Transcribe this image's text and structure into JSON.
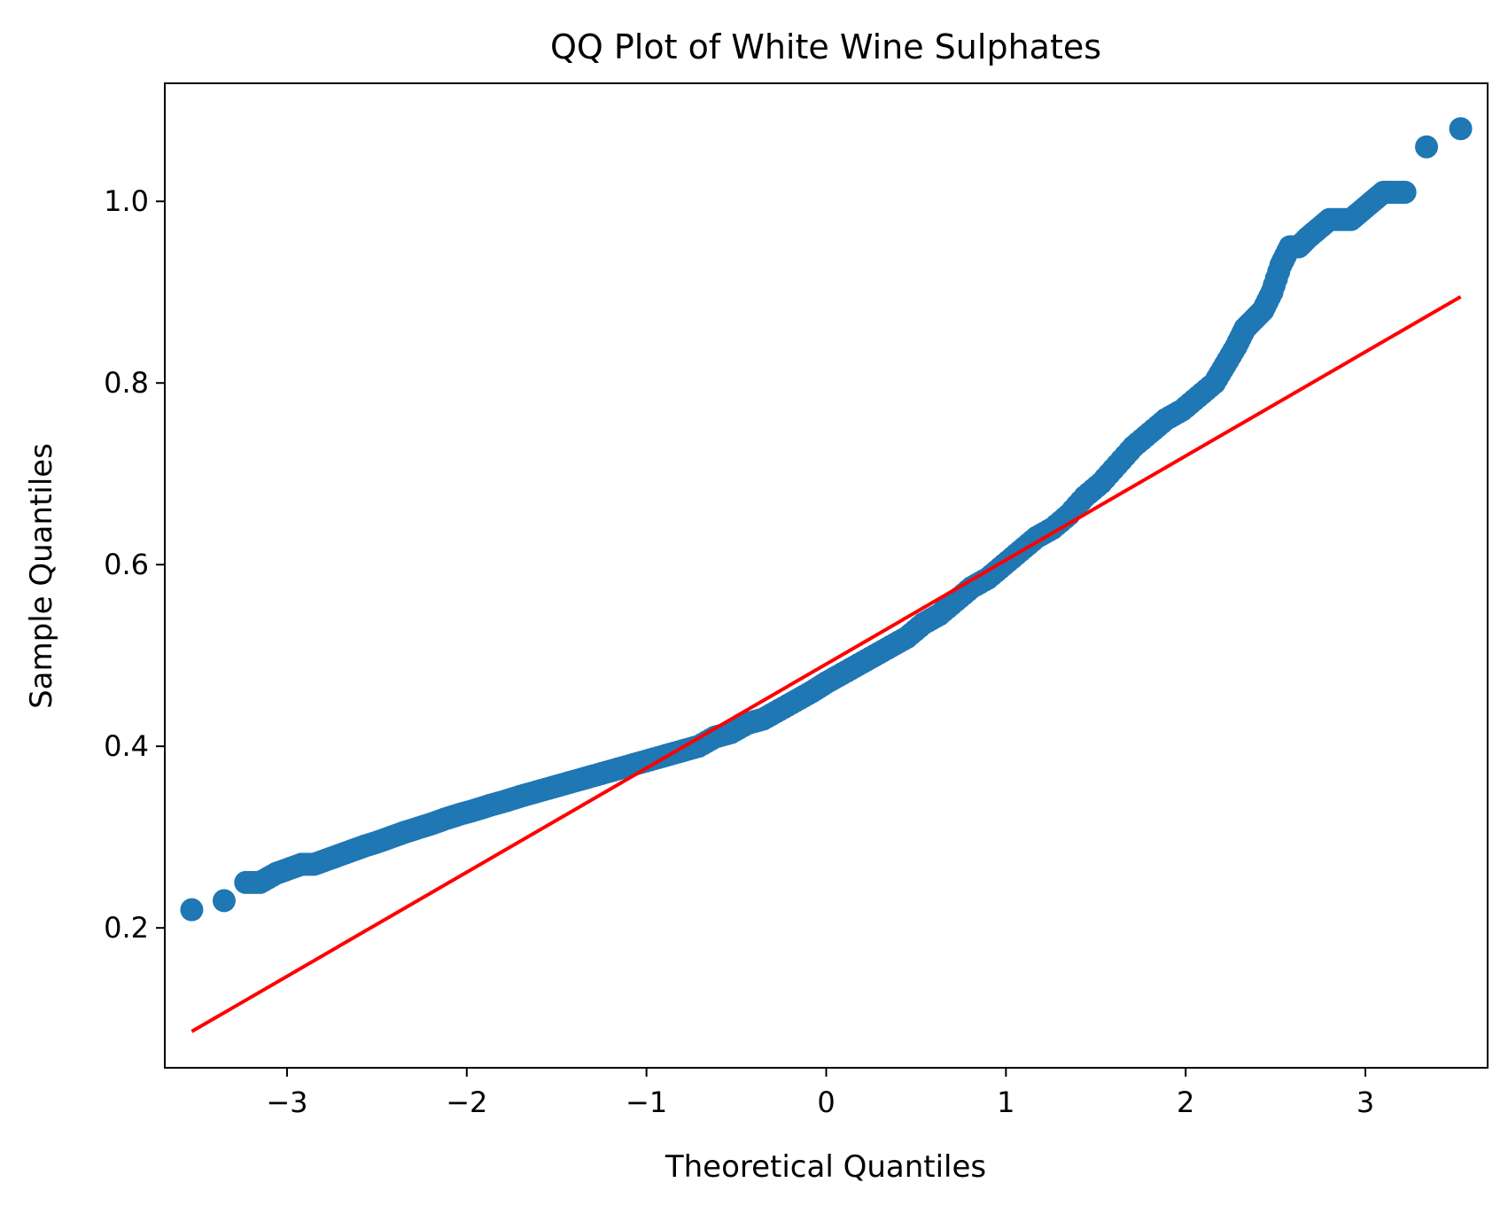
{
  "chart_data": {
    "type": "scatter",
    "title": "QQ Plot of White Wine Sulphates",
    "xlabel": "Theoretical Quantiles",
    "ylabel": "Sample Quantiles",
    "xlim": [
      -3.68,
      3.68
    ],
    "ylim": [
      0.046,
      1.13
    ],
    "xticks": [
      {
        "value": -3,
        "label": "−3"
      },
      {
        "value": -2,
        "label": "−2"
      },
      {
        "value": -1,
        "label": "−1"
      },
      {
        "value": 0,
        "label": "0"
      },
      {
        "value": 1,
        "label": "1"
      },
      {
        "value": 2,
        "label": "2"
      },
      {
        "value": 3,
        "label": "3"
      }
    ],
    "yticks": [
      {
        "value": 0.2,
        "label": "0.2"
      },
      {
        "value": 0.4,
        "label": "0.4"
      },
      {
        "value": 0.6,
        "label": "0.6"
      },
      {
        "value": 0.8,
        "label": "0.8"
      },
      {
        "value": 1.0,
        "label": "1.0"
      }
    ],
    "grid": false,
    "series": [
      {
        "name": "sample quantiles",
        "color": "#1f77b4",
        "x": [
          -3.53,
          -3.35,
          -3.23,
          -3.15,
          -3.06,
          -2.99,
          -2.92,
          -2.85,
          -2.78,
          -2.71,
          -2.64,
          -2.57,
          -2.49,
          -2.42,
          -2.35,
          -2.27,
          -2.19,
          -2.12,
          -2.04,
          -1.95,
          -1.87,
          -1.78,
          -1.7,
          -1.61,
          -1.52,
          -1.43,
          -1.34,
          -1.25,
          -1.16,
          -1.07,
          -0.98,
          -0.89,
          -0.8,
          -0.71,
          -0.62,
          -0.53,
          -0.44,
          -0.35,
          -0.26,
          -0.17,
          -0.08,
          0.0,
          0.09,
          0.18,
          0.27,
          0.36,
          0.45,
          0.54,
          0.63,
          0.72,
          0.81,
          0.9,
          0.99,
          1.08,
          1.17,
          1.26,
          1.35,
          1.44,
          1.53,
          1.62,
          1.71,
          1.8,
          1.89,
          1.98,
          2.07,
          2.16,
          2.22,
          2.28,
          2.33,
          2.38,
          2.43,
          2.48,
          2.53,
          2.58,
          2.63,
          2.68,
          2.74,
          2.8,
          2.86,
          2.92,
          2.98,
          3.04,
          3.1,
          3.15,
          3.22,
          3.34,
          3.53
        ],
        "y": [
          0.22,
          0.23,
          0.25,
          0.25,
          0.26,
          0.265,
          0.27,
          0.27,
          0.275,
          0.28,
          0.285,
          0.29,
          0.295,
          0.3,
          0.305,
          0.31,
          0.315,
          0.32,
          0.325,
          0.33,
          0.335,
          0.34,
          0.345,
          0.35,
          0.355,
          0.36,
          0.365,
          0.37,
          0.375,
          0.38,
          0.385,
          0.39,
          0.395,
          0.4,
          0.41,
          0.415,
          0.425,
          0.43,
          0.44,
          0.45,
          0.46,
          0.47,
          0.48,
          0.49,
          0.5,
          0.51,
          0.52,
          0.535,
          0.545,
          0.56,
          0.575,
          0.585,
          0.6,
          0.615,
          0.63,
          0.64,
          0.655,
          0.675,
          0.69,
          0.71,
          0.73,
          0.745,
          0.76,
          0.77,
          0.785,
          0.8,
          0.82,
          0.84,
          0.86,
          0.87,
          0.88,
          0.9,
          0.93,
          0.95,
          0.95,
          0.96,
          0.97,
          0.98,
          0.98,
          0.98,
          0.99,
          1.0,
          1.01,
          1.01,
          1.01,
          1.06,
          1.08
        ]
      },
      {
        "name": "reference line",
        "color": "#ff0000",
        "x": [
          -3.53,
          3.53
        ],
        "y": [
          0.086,
          0.895
        ]
      }
    ]
  }
}
